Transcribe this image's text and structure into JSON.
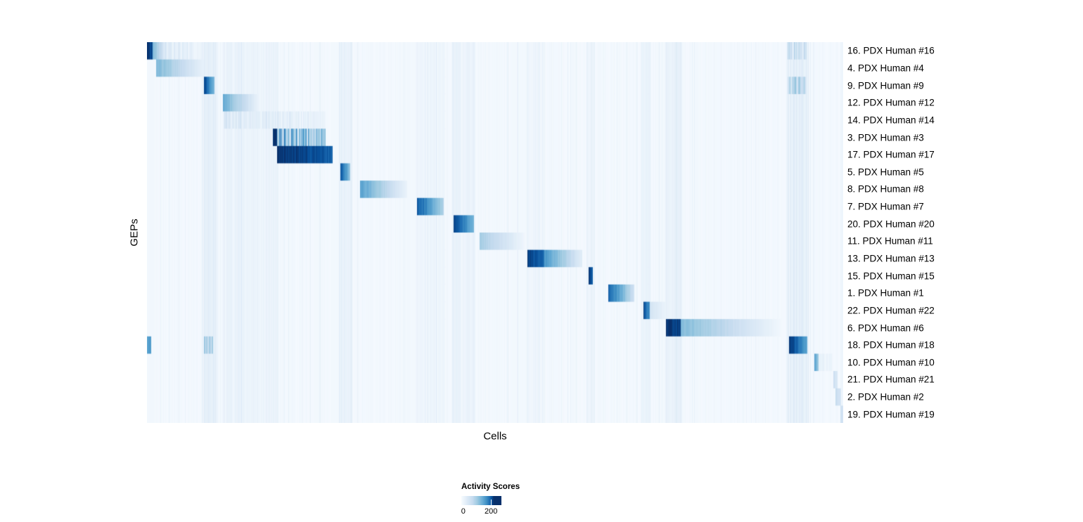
{
  "chart_data": {
    "type": "heatmap",
    "title": "",
    "xlabel": "Cells",
    "ylabel": "GEPs",
    "colormap": "Blues",
    "palette": [
      "#f7fbff",
      "#deebf7",
      "#c6dbef",
      "#9ecae1",
      "#6baed6",
      "#4292c6",
      "#2171b5",
      "#08519c",
      "#08306b"
    ],
    "colorbar": {
      "title": "Activity Scores",
      "tick_labels": [
        "0",
        "200"
      ],
      "vmin": 0,
      "vmax": 270
    },
    "column_bands": [
      {
        "x0": 0.079,
        "x1": 0.099,
        "v": 0.05
      },
      {
        "x0": 0.108,
        "x1": 0.187,
        "v": 0.03
      },
      {
        "x0": 0.275,
        "x1": 0.294,
        "v": 0.04
      },
      {
        "x0": 0.385,
        "x1": 0.428,
        "v": 0.02
      },
      {
        "x0": 0.438,
        "x1": 0.471,
        "v": 0.03
      },
      {
        "x0": 0.545,
        "x1": 0.572,
        "v": 0.02
      },
      {
        "x0": 0.631,
        "x1": 0.643,
        "v": 0.03
      },
      {
        "x0": 0.71,
        "x1": 0.724,
        "v": 0.03
      },
      {
        "x0": 0.744,
        "x1": 0.768,
        "v": 0.04
      },
      {
        "x0": 0.918,
        "x1": 0.95,
        "v": 0.05
      }
    ],
    "rows": [
      {
        "label": "16. PDX Human #16",
        "blocks": [
          {
            "x0": 0.0,
            "x1": 0.008,
            "v0": 1.0,
            "v1": 0.9
          },
          {
            "x0": 0.008,
            "x1": 0.022,
            "v0": 0.45,
            "v1": 0.2
          },
          {
            "x0": 0.022,
            "x1": 0.082,
            "v0": 0.12,
            "v1": 0.05,
            "striped": true
          },
          {
            "x0": 0.92,
            "x1": 0.947,
            "v0": 0.2,
            "v1": 0.2,
            "striped": true
          }
        ]
      },
      {
        "label": "4. PDX Human #4",
        "blocks": [
          {
            "x0": 0.013,
            "x1": 0.084,
            "v0": 0.45,
            "v1": 0.06
          }
        ]
      },
      {
        "label": "9. PDX Human #9",
        "blocks": [
          {
            "x0": 0.081,
            "x1": 0.096,
            "v0": 0.95,
            "v1": 0.45
          },
          {
            "x0": 0.92,
            "x1": 0.947,
            "v0": 0.25,
            "v1": 0.25,
            "striped": true
          }
        ]
      },
      {
        "label": "12. PDX Human #12",
        "blocks": [
          {
            "x0": 0.109,
            "x1": 0.16,
            "v0": 0.5,
            "v1": 0.06
          }
        ]
      },
      {
        "label": "14. PDX Human #14",
        "blocks": [
          {
            "x0": 0.109,
            "x1": 0.185,
            "v0": 0.14,
            "v1": 0.09,
            "striped": true
          },
          {
            "x0": 0.186,
            "x1": 0.256,
            "v0": 0.1,
            "v1": 0.06,
            "striped": true
          }
        ]
      },
      {
        "label": "3. PDX Human #3",
        "blocks": [
          {
            "x0": 0.18,
            "x1": 0.186,
            "v0": 1.0,
            "v1": 1.0
          },
          {
            "x0": 0.186,
            "x1": 0.256,
            "v0": 0.5,
            "v1": 0.35,
            "striped": true
          }
        ]
      },
      {
        "label": "17. PDX Human #17",
        "blocks": [
          {
            "x0": 0.186,
            "x1": 0.266,
            "v0": 1.0,
            "v1": 0.82
          }
        ]
      },
      {
        "label": "5. PDX Human #5",
        "blocks": [
          {
            "x0": 0.277,
            "x1": 0.291,
            "v0": 0.9,
            "v1": 0.4
          }
        ]
      },
      {
        "label": "8. PDX Human #8",
        "blocks": [
          {
            "x0": 0.306,
            "x1": 0.373,
            "v0": 0.55,
            "v1": 0.06
          }
        ]
      },
      {
        "label": "7. PDX Human #7",
        "blocks": [
          {
            "x0": 0.387,
            "x1": 0.426,
            "v0": 0.85,
            "v1": 0.3
          }
        ]
      },
      {
        "label": "20. PDX Human #20",
        "blocks": [
          {
            "x0": 0.44,
            "x1": 0.469,
            "v0": 0.95,
            "v1": 0.45
          }
        ]
      },
      {
        "label": "11. PDX Human #11",
        "blocks": [
          {
            "x0": 0.477,
            "x1": 0.542,
            "v0": 0.35,
            "v1": 0.04
          }
        ]
      },
      {
        "label": "13. PDX Human #13",
        "blocks": [
          {
            "x0": 0.546,
            "x1": 0.57,
            "v0": 0.95,
            "v1": 0.75
          },
          {
            "x0": 0.57,
            "x1": 0.625,
            "v0": 0.6,
            "v1": 0.1
          }
        ]
      },
      {
        "label": "15. PDX Human #15",
        "blocks": [
          {
            "x0": 0.634,
            "x1": 0.64,
            "v0": 0.95,
            "v1": 0.8
          }
        ]
      },
      {
        "label": "1. PDX Human #1",
        "blocks": [
          {
            "x0": 0.662,
            "x1": 0.699,
            "v0": 0.8,
            "v1": 0.2
          }
        ]
      },
      {
        "label": "22. PDX Human #22",
        "blocks": [
          {
            "x0": 0.713,
            "x1": 0.722,
            "v0": 0.9,
            "v1": 0.6
          },
          {
            "x0": 0.722,
            "x1": 0.746,
            "v0": 0.18,
            "v1": 0.05
          }
        ]
      },
      {
        "label": "6. PDX Human #6",
        "blocks": [
          {
            "x0": 0.745,
            "x1": 0.766,
            "v0": 1.0,
            "v1": 0.9
          },
          {
            "x0": 0.766,
            "x1": 0.91,
            "v0": 0.45,
            "v1": 0.03
          }
        ]
      },
      {
        "label": "18. PDX Human #18",
        "blocks": [
          {
            "x0": 0.0,
            "x1": 0.006,
            "v0": 0.55,
            "v1": 0.55
          },
          {
            "x0": 0.081,
            "x1": 0.094,
            "v0": 0.25,
            "v1": 0.25,
            "striped": true
          },
          {
            "x0": 0.922,
            "x1": 0.948,
            "v0": 1.0,
            "v1": 0.5
          }
        ]
      },
      {
        "label": "10. PDX Human #10",
        "blocks": [
          {
            "x0": 0.958,
            "x1": 0.964,
            "v0": 0.6,
            "v1": 0.35
          },
          {
            "x0": 0.964,
            "x1": 0.984,
            "v0": 0.08,
            "v1": 0.04,
            "striped": true
          }
        ]
      },
      {
        "label": "21. PDX Human #21",
        "blocks": [
          {
            "x0": 0.985,
            "x1": 0.991,
            "v0": 0.22,
            "v1": 0.15
          }
        ]
      },
      {
        "label": "2. PDX Human #2",
        "blocks": [
          {
            "x0": 0.988,
            "x1": 0.996,
            "v0": 0.25,
            "v1": 0.15
          }
        ]
      },
      {
        "label": "19. PDX Human #19",
        "blocks": [
          {
            "x0": 0.995,
            "x1": 1.0,
            "v0": 0.22,
            "v1": 0.15
          }
        ]
      }
    ]
  }
}
